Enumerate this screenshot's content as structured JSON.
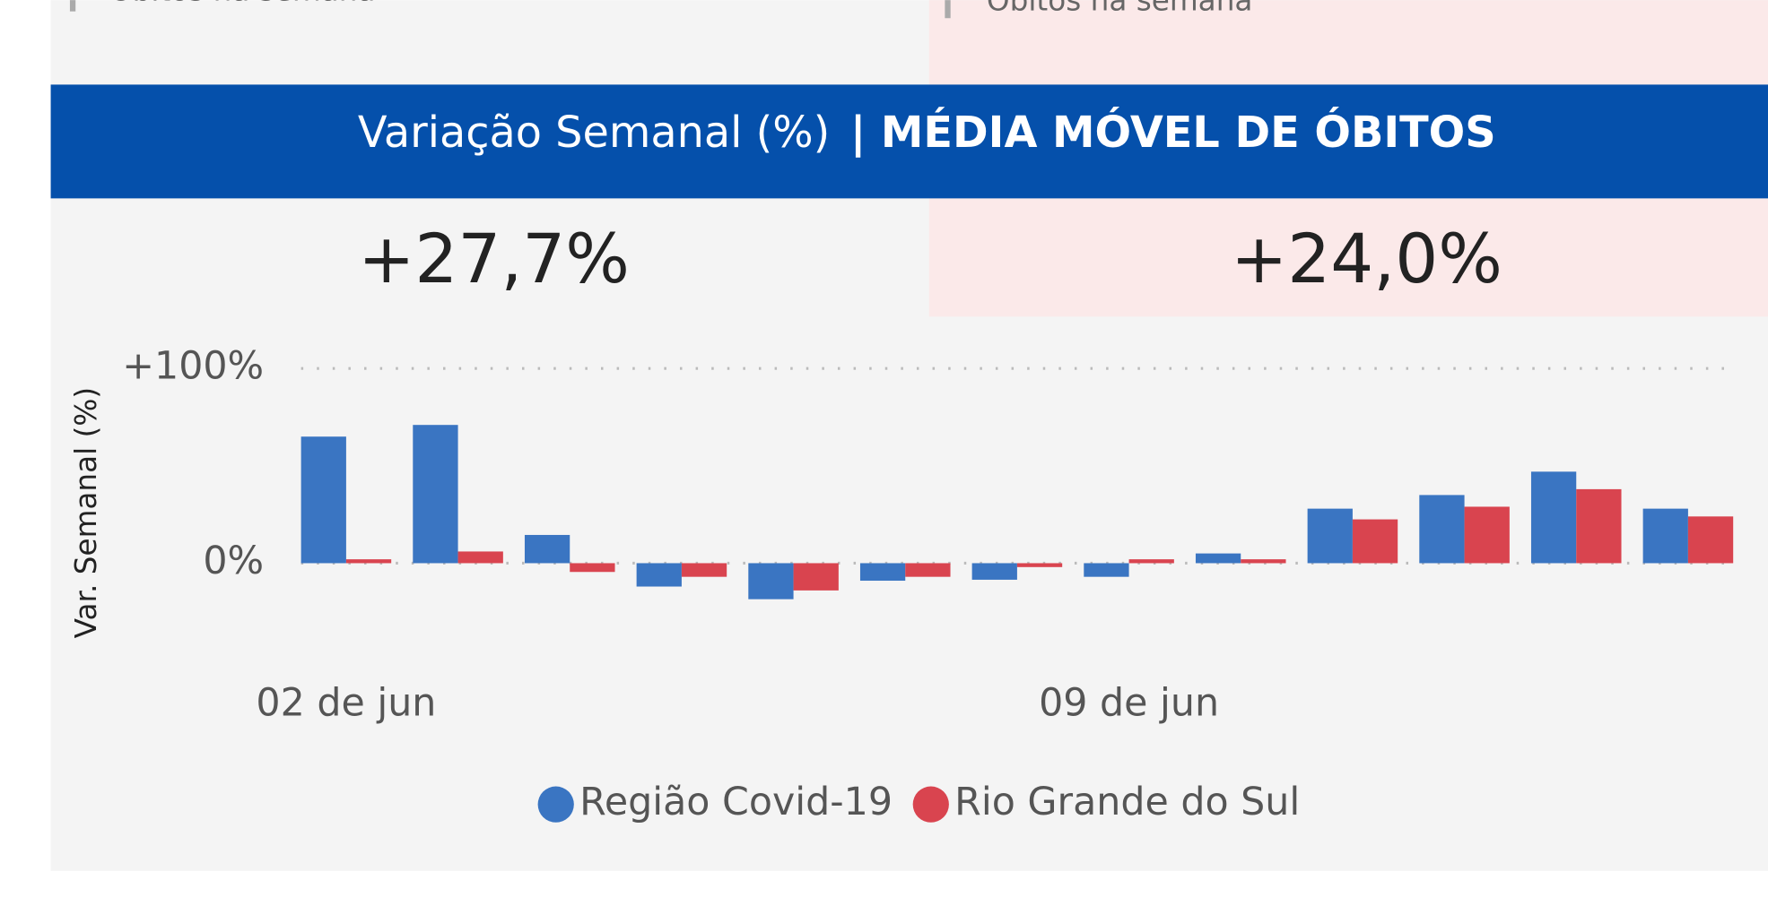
{
  "top_cards": [
    "Óbitos na semana",
    "Óbitos na semana"
  ],
  "header": {
    "title": "Variação Semanal (%)",
    "subtitle": "| MÉDIA MÓVEL DE ÓBITOS"
  },
  "kpis": [
    "+27,7%",
    "+24,0%"
  ],
  "chart_data": {
    "type": "bar",
    "y_label": "Var. Semanal (%)",
    "categories": [
      "02 de jun",
      null,
      null,
      null,
      null,
      null,
      null,
      "09 de jun",
      null,
      null,
      null,
      null,
      null
    ],
    "series": [
      {
        "name": "Região Covid-19",
        "color": "#3a75c2",
        "values": [
          65,
          71,
          14.5,
          -12,
          -18.5,
          -9,
          -8.5,
          -7,
          5,
          28,
          35,
          47,
          28
        ]
      },
      {
        "name": "Rio Grande do Sul",
        "color": "#d9444f",
        "values": [
          2,
          6,
          -4.5,
          -7,
          -14,
          -7,
          -2,
          2,
          2,
          22.5,
          29,
          38,
          24
        ]
      }
    ],
    "ylim": [
      -40,
      100
    ],
    "yticks": [
      {
        "value": 0,
        "label": "0%"
      },
      {
        "value": 100,
        "label": "+100%"
      }
    ],
    "grid": true,
    "legend": "bottom"
  }
}
